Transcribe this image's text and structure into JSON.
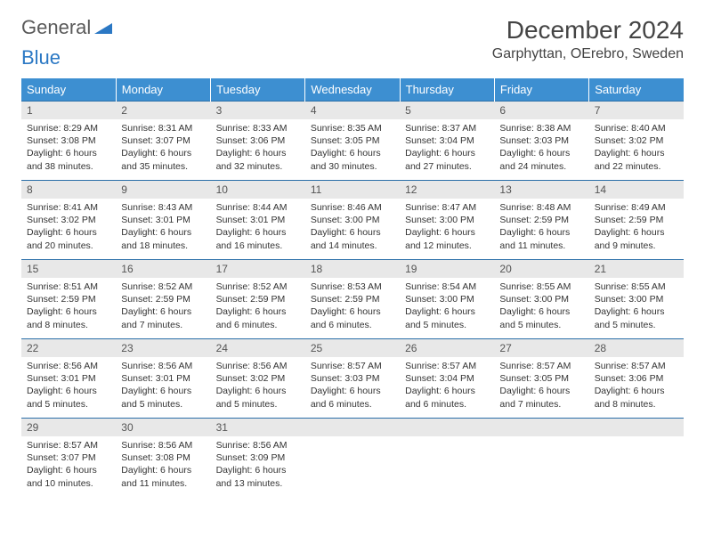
{
  "logo": {
    "text_general": "General",
    "text_blue": "Blue",
    "mark_color": "#2b78c4"
  },
  "title": "December 2024",
  "location": "Garphyttan, OErebro, Sweden",
  "colors": {
    "header_bg": "#3d8fd1",
    "header_text": "#ffffff",
    "row_border": "#2b6fa8",
    "daynum_bg": "#e8e8e8",
    "body_text": "#333333"
  },
  "weekdays": [
    "Sunday",
    "Monday",
    "Tuesday",
    "Wednesday",
    "Thursday",
    "Friday",
    "Saturday"
  ],
  "weeks": [
    [
      {
        "n": "1",
        "sr": "8:29 AM",
        "ss": "3:08 PM",
        "dl": "6 hours and 38 minutes."
      },
      {
        "n": "2",
        "sr": "8:31 AM",
        "ss": "3:07 PM",
        "dl": "6 hours and 35 minutes."
      },
      {
        "n": "3",
        "sr": "8:33 AM",
        "ss": "3:06 PM",
        "dl": "6 hours and 32 minutes."
      },
      {
        "n": "4",
        "sr": "8:35 AM",
        "ss": "3:05 PM",
        "dl": "6 hours and 30 minutes."
      },
      {
        "n": "5",
        "sr": "8:37 AM",
        "ss": "3:04 PM",
        "dl": "6 hours and 27 minutes."
      },
      {
        "n": "6",
        "sr": "8:38 AM",
        "ss": "3:03 PM",
        "dl": "6 hours and 24 minutes."
      },
      {
        "n": "7",
        "sr": "8:40 AM",
        "ss": "3:02 PM",
        "dl": "6 hours and 22 minutes."
      }
    ],
    [
      {
        "n": "8",
        "sr": "8:41 AM",
        "ss": "3:02 PM",
        "dl": "6 hours and 20 minutes."
      },
      {
        "n": "9",
        "sr": "8:43 AM",
        "ss": "3:01 PM",
        "dl": "6 hours and 18 minutes."
      },
      {
        "n": "10",
        "sr": "8:44 AM",
        "ss": "3:01 PM",
        "dl": "6 hours and 16 minutes."
      },
      {
        "n": "11",
        "sr": "8:46 AM",
        "ss": "3:00 PM",
        "dl": "6 hours and 14 minutes."
      },
      {
        "n": "12",
        "sr": "8:47 AM",
        "ss": "3:00 PM",
        "dl": "6 hours and 12 minutes."
      },
      {
        "n": "13",
        "sr": "8:48 AM",
        "ss": "2:59 PM",
        "dl": "6 hours and 11 minutes."
      },
      {
        "n": "14",
        "sr": "8:49 AM",
        "ss": "2:59 PM",
        "dl": "6 hours and 9 minutes."
      }
    ],
    [
      {
        "n": "15",
        "sr": "8:51 AM",
        "ss": "2:59 PM",
        "dl": "6 hours and 8 minutes."
      },
      {
        "n": "16",
        "sr": "8:52 AM",
        "ss": "2:59 PM",
        "dl": "6 hours and 7 minutes."
      },
      {
        "n": "17",
        "sr": "8:52 AM",
        "ss": "2:59 PM",
        "dl": "6 hours and 6 minutes."
      },
      {
        "n": "18",
        "sr": "8:53 AM",
        "ss": "2:59 PM",
        "dl": "6 hours and 6 minutes."
      },
      {
        "n": "19",
        "sr": "8:54 AM",
        "ss": "3:00 PM",
        "dl": "6 hours and 5 minutes."
      },
      {
        "n": "20",
        "sr": "8:55 AM",
        "ss": "3:00 PM",
        "dl": "6 hours and 5 minutes."
      },
      {
        "n": "21",
        "sr": "8:55 AM",
        "ss": "3:00 PM",
        "dl": "6 hours and 5 minutes."
      }
    ],
    [
      {
        "n": "22",
        "sr": "8:56 AM",
        "ss": "3:01 PM",
        "dl": "6 hours and 5 minutes."
      },
      {
        "n": "23",
        "sr": "8:56 AM",
        "ss": "3:01 PM",
        "dl": "6 hours and 5 minutes."
      },
      {
        "n": "24",
        "sr": "8:56 AM",
        "ss": "3:02 PM",
        "dl": "6 hours and 5 minutes."
      },
      {
        "n": "25",
        "sr": "8:57 AM",
        "ss": "3:03 PM",
        "dl": "6 hours and 6 minutes."
      },
      {
        "n": "26",
        "sr": "8:57 AM",
        "ss": "3:04 PM",
        "dl": "6 hours and 6 minutes."
      },
      {
        "n": "27",
        "sr": "8:57 AM",
        "ss": "3:05 PM",
        "dl": "6 hours and 7 minutes."
      },
      {
        "n": "28",
        "sr": "8:57 AM",
        "ss": "3:06 PM",
        "dl": "6 hours and 8 minutes."
      }
    ],
    [
      {
        "n": "29",
        "sr": "8:57 AM",
        "ss": "3:07 PM",
        "dl": "6 hours and 10 minutes."
      },
      {
        "n": "30",
        "sr": "8:56 AM",
        "ss": "3:08 PM",
        "dl": "6 hours and 11 minutes."
      },
      {
        "n": "31",
        "sr": "8:56 AM",
        "ss": "3:09 PM",
        "dl": "6 hours and 13 minutes."
      },
      null,
      null,
      null,
      null
    ]
  ],
  "labels": {
    "sunrise": "Sunrise:",
    "sunset": "Sunset:",
    "daylight": "Daylight:"
  }
}
